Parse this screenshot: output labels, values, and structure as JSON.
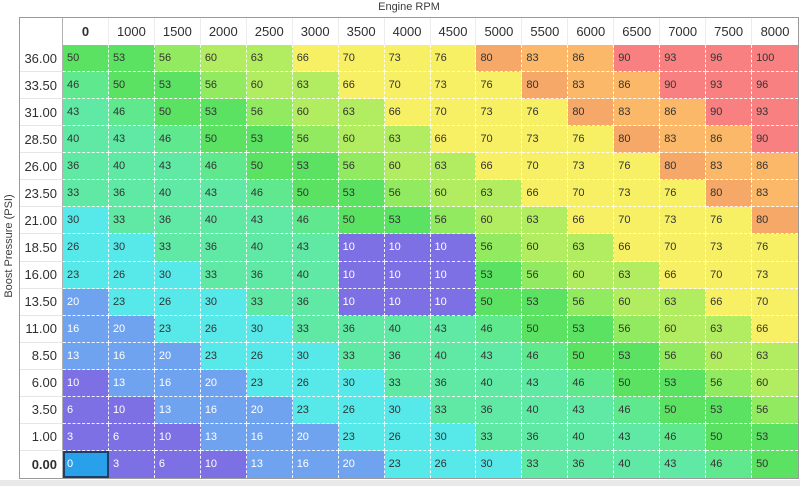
{
  "window": {
    "x_axis_title": "Engine RPM",
    "y_axis_title": "Boost Pressure (PSI)"
  },
  "table": {
    "columns": [
      "0",
      "1000",
      "1500",
      "2000",
      "2500",
      "3000",
      "3500",
      "4000",
      "4500",
      "5000",
      "5500",
      "6000",
      "6500",
      "7000",
      "7500",
      "8000"
    ],
    "selected_column": "0",
    "selected_row": "0.00",
    "rows": [
      {
        "label": "36.00",
        "values": [
          50,
          53,
          56,
          60,
          63,
          66,
          70,
          73,
          76,
          80,
          83,
          86,
          90,
          93,
          96,
          100
        ]
      },
      {
        "label": "33.50",
        "values": [
          46,
          50,
          53,
          56,
          60,
          63,
          66,
          70,
          73,
          76,
          80,
          83,
          86,
          90,
          93,
          96
        ]
      },
      {
        "label": "31.00",
        "values": [
          43,
          46,
          50,
          53,
          56,
          60,
          63,
          66,
          70,
          73,
          76,
          80,
          83,
          86,
          90,
          93
        ]
      },
      {
        "label": "28.50",
        "values": [
          40,
          43,
          46,
          50,
          53,
          56,
          60,
          63,
          66,
          70,
          73,
          76,
          80,
          83,
          86,
          90
        ]
      },
      {
        "label": "26.00",
        "values": [
          36,
          40,
          43,
          46,
          50,
          53,
          56,
          60,
          63,
          66,
          70,
          73,
          76,
          80,
          83,
          86
        ]
      },
      {
        "label": "23.50",
        "values": [
          33,
          36,
          40,
          43,
          46,
          50,
          53,
          56,
          60,
          63,
          66,
          70,
          73,
          76,
          80,
          83
        ]
      },
      {
        "label": "21.00",
        "values": [
          30,
          33,
          36,
          40,
          43,
          46,
          50,
          53,
          56,
          60,
          63,
          66,
          70,
          73,
          76,
          80
        ]
      },
      {
        "label": "18.50",
        "values": [
          26,
          30,
          33,
          36,
          40,
          43,
          10,
          10,
          10,
          56,
          60,
          63,
          66,
          70,
          73,
          76
        ]
      },
      {
        "label": "16.00",
        "values": [
          23,
          26,
          30,
          33,
          36,
          40,
          10,
          10,
          10,
          53,
          56,
          60,
          63,
          66,
          70,
          73
        ]
      },
      {
        "label": "13.50",
        "values": [
          20,
          23,
          26,
          30,
          33,
          36,
          10,
          10,
          10,
          50,
          53,
          56,
          60,
          63,
          66,
          70
        ]
      },
      {
        "label": "11.00",
        "values": [
          16,
          20,
          23,
          26,
          30,
          33,
          36,
          40,
          43,
          46,
          50,
          53,
          56,
          60,
          63,
          66
        ]
      },
      {
        "label": "8.50",
        "values": [
          13,
          16,
          20,
          23,
          26,
          30,
          33,
          36,
          40,
          43,
          46,
          50,
          53,
          56,
          60,
          63
        ]
      },
      {
        "label": "6.00",
        "values": [
          10,
          13,
          16,
          20,
          23,
          26,
          30,
          33,
          36,
          40,
          43,
          46,
          50,
          53,
          56,
          60
        ]
      },
      {
        "label": "3.50",
        "values": [
          6,
          10,
          13,
          16,
          20,
          23,
          26,
          30,
          33,
          36,
          40,
          43,
          46,
          50,
          53,
          56
        ]
      },
      {
        "label": "1.00",
        "values": [
          3,
          6,
          10,
          13,
          16,
          20,
          23,
          26,
          30,
          33,
          36,
          40,
          43,
          46,
          50,
          53
        ]
      },
      {
        "label": "0.00",
        "values": [
          0,
          3,
          6,
          10,
          13,
          16,
          20,
          23,
          26,
          30,
          33,
          36,
          40,
          43,
          46,
          50
        ]
      }
    ]
  },
  "color_scale": {
    "map": {
      "0": "#7d6fe4",
      "3": "#7d6fe4",
      "6": "#7d6fe4",
      "10": "#7d6fe4",
      "13": "#6fa3f0",
      "16": "#6fa3f0",
      "20": "#6fa3f0",
      "23": "#57e9e9",
      "26": "#57e9e9",
      "30": "#57e9e9",
      "33": "#60e9a5",
      "36": "#60e9a5",
      "40": "#60e9a5",
      "43": "#60e9a5",
      "46": "#60e88e",
      "50": "#5ce263",
      "53": "#5ce263",
      "56": "#92ea61",
      "60": "#b2ec60",
      "63": "#b2ec60",
      "66": "#f7f065",
      "70": "#f7f065",
      "73": "#f7f065",
      "76": "#f7f065",
      "80": "#f6a869",
      "83": "#fbb869",
      "86": "#fbb869",
      "90": "#f98080",
      "93": "#f98080",
      "96": "#f98080",
      "100": "#f98080"
    },
    "white_text_values": [
      0,
      3,
      6,
      10,
      13,
      16,
      20
    ]
  },
  "selection": {
    "row": "0.00",
    "column": "0",
    "cell_background": "#29a0ea",
    "cell_border": "#1e3e66"
  },
  "colors": {
    "text_dark": "#333333",
    "text_light": "#ffffff",
    "outer_border": "#9a9a9a",
    "header_divider": "#b0b0b0",
    "bottom_strip": "#e9e9e9"
  }
}
